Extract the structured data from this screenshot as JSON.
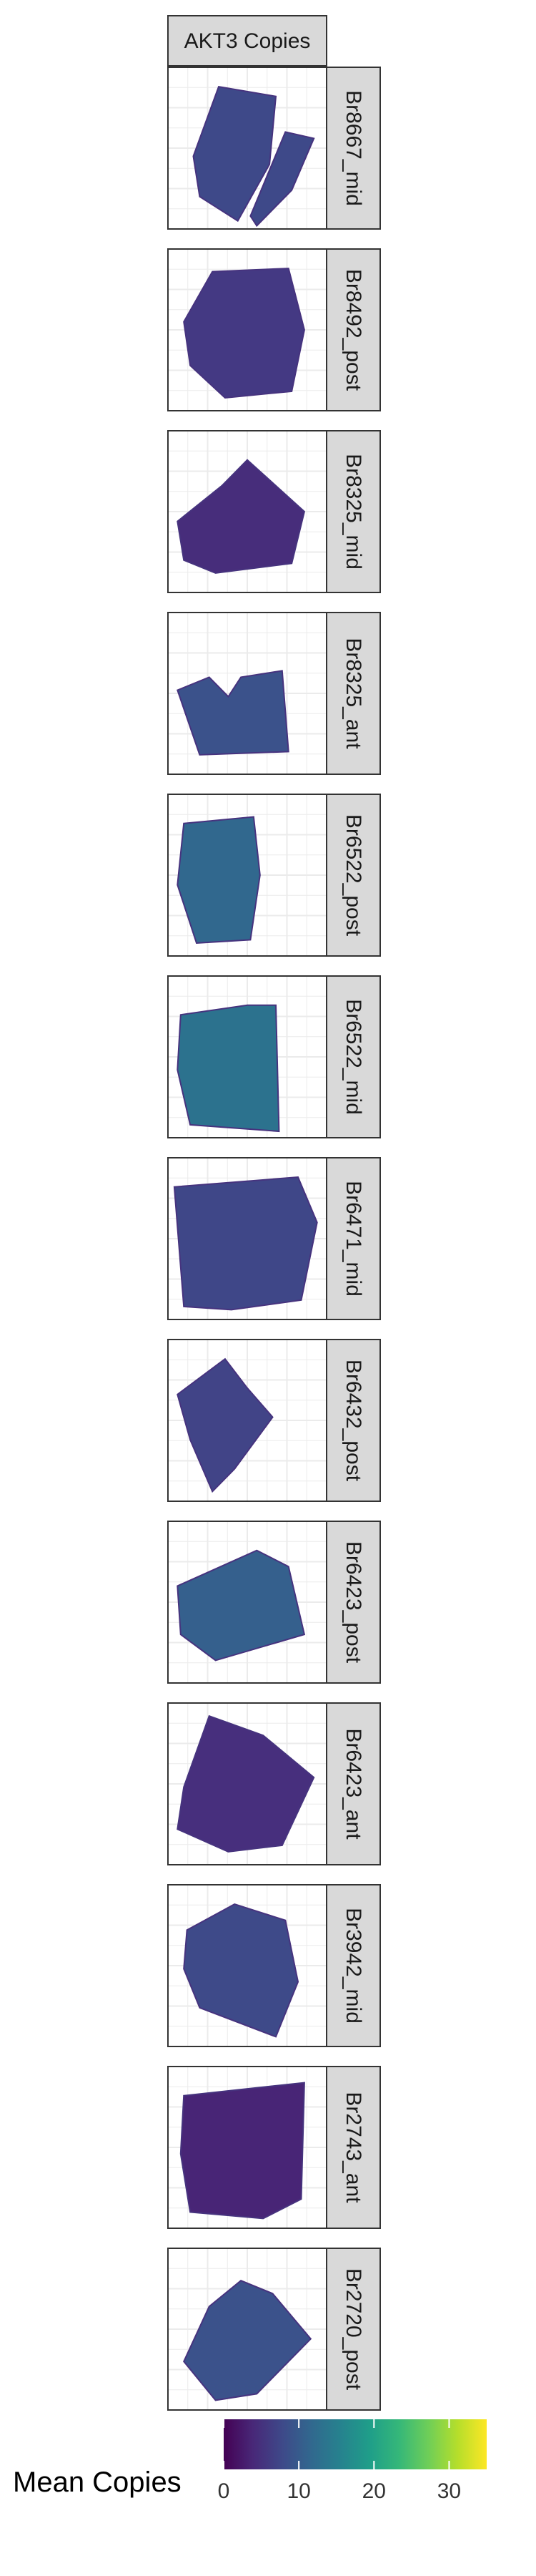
{
  "chart_data": {
    "type": "heatmap",
    "title": "",
    "facet_label": "AKT3 Copies",
    "panels": [
      {
        "label": "Br8667_mid"
      },
      {
        "label": "Br8492_post"
      },
      {
        "label": "Br8325_mid"
      },
      {
        "label": "Br8325_ant"
      },
      {
        "label": "Br6522_post"
      },
      {
        "label": "Br6522_mid"
      },
      {
        "label": "Br6471_mid"
      },
      {
        "label": "Br6432_post"
      },
      {
        "label": "Br6423_post"
      },
      {
        "label": "Br6423_ant"
      },
      {
        "label": "Br3942_mid"
      },
      {
        "label": "Br2743_ant"
      },
      {
        "label": "Br2720_post"
      }
    ],
    "legend": {
      "title": "Mean Copies",
      "ticks": [
        0,
        10,
        20,
        30
      ],
      "range": [
        0,
        35
      ],
      "palette": "viridis",
      "placement": "bottom"
    },
    "grid": true
  },
  "colors": {
    "viridis": [
      "#440154",
      "#482878",
      "#3e4989",
      "#31688e",
      "#26828e",
      "#1f9e89",
      "#35b779",
      "#6ece58",
      "#b5de2b",
      "#fde725"
    ],
    "panel_border": "#333333",
    "strip_fill": "#d9d9d9",
    "grid": "#ebebeb"
  }
}
